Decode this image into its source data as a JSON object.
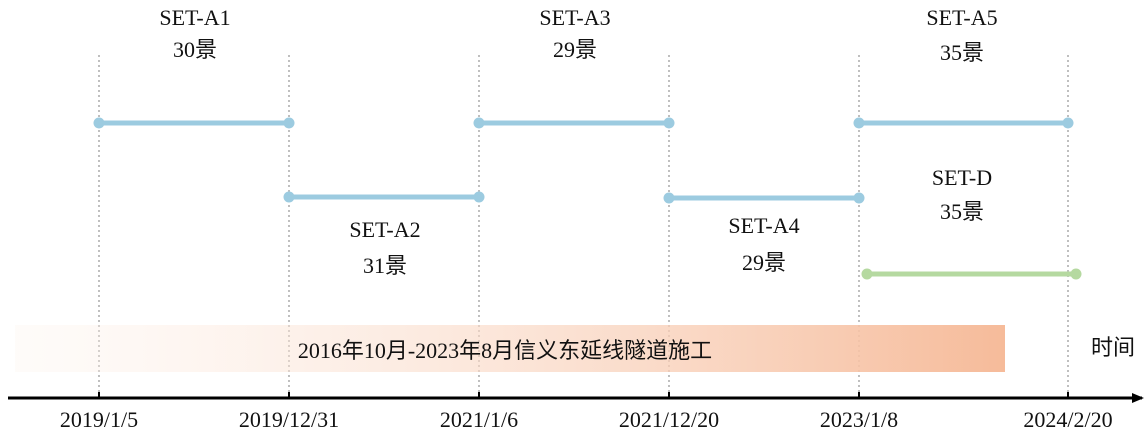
{
  "dates": [
    "2019/1/5",
    "2019/12/31",
    "2021/1/6",
    "2021/12/20",
    "2023/1/8",
    "2024/2/20"
  ],
  "sets": [
    {
      "name": "SET-A1",
      "count": "30景"
    },
    {
      "name": "SET-A2",
      "count": "31景"
    },
    {
      "name": "SET-A3",
      "count": "29景"
    },
    {
      "name": "SET-A4",
      "count": "29景"
    },
    {
      "name": "SET-A5",
      "count": "35景"
    },
    {
      "name": "SET-D",
      "count": "35景"
    }
  ],
  "banner": "2016年10月-2023年8月信义东延线隧道施工",
  "axis_label": "时间"
}
